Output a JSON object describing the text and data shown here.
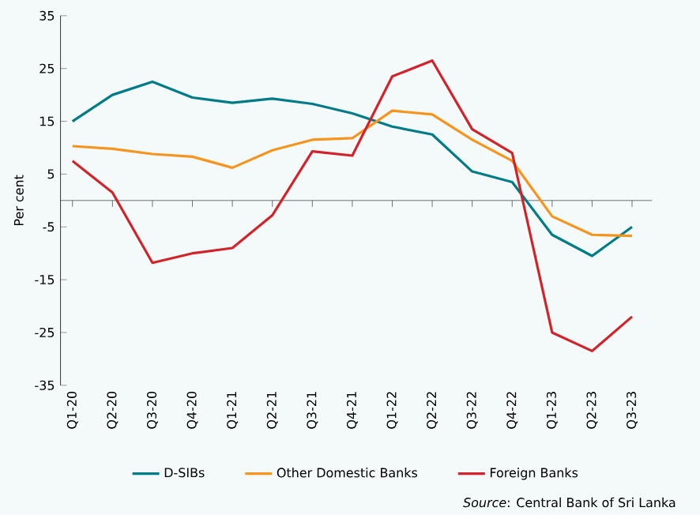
{
  "chart_data": {
    "type": "line",
    "ylabel": "Per cent",
    "categories": [
      "Q1-20",
      "Q2-20",
      "Q3-20",
      "Q4-20",
      "Q1-21",
      "Q2-21",
      "Q3-21",
      "Q4-21",
      "Q1-22",
      "Q2-22",
      "Q3-22",
      "Q4-22",
      "Q1-23",
      "Q2-23",
      "Q3-23"
    ],
    "series": [
      {
        "name": "D-SIBs",
        "color": "#007b87",
        "values": [
          15,
          20,
          22.5,
          19.5,
          18.5,
          19.3,
          18.3,
          16.5,
          14,
          12.5,
          5.5,
          3.5,
          -6.5,
          -10.5,
          -5
        ]
      },
      {
        "name": "Other Domestic Banks",
        "color": "#f7941d",
        "values": [
          10.3,
          9.8,
          8.8,
          8.3,
          6.2,
          9.5,
          11.5,
          11.8,
          17,
          16.3,
          11.5,
          7.5,
          -3,
          -6.5,
          -6.7
        ]
      },
      {
        "name": "Foreign Banks",
        "color": "#d2232a",
        "values": [
          7.5,
          1.5,
          -11.8,
          -10,
          -9,
          -2.8,
          9.3,
          8.5,
          23.5,
          26.5,
          13.5,
          9,
          -25,
          -28.5,
          -22
        ]
      }
    ],
    "ylim": [
      -35,
      35
    ],
    "yticks": [
      -35,
      -25,
      -15,
      -5,
      5,
      15,
      25,
      35
    ],
    "legend": "bottom",
    "marker": "none",
    "line_style": "solid",
    "grid": false,
    "annotations": [
      "*Source*: Central Bank of Sri Lanka"
    ]
  }
}
